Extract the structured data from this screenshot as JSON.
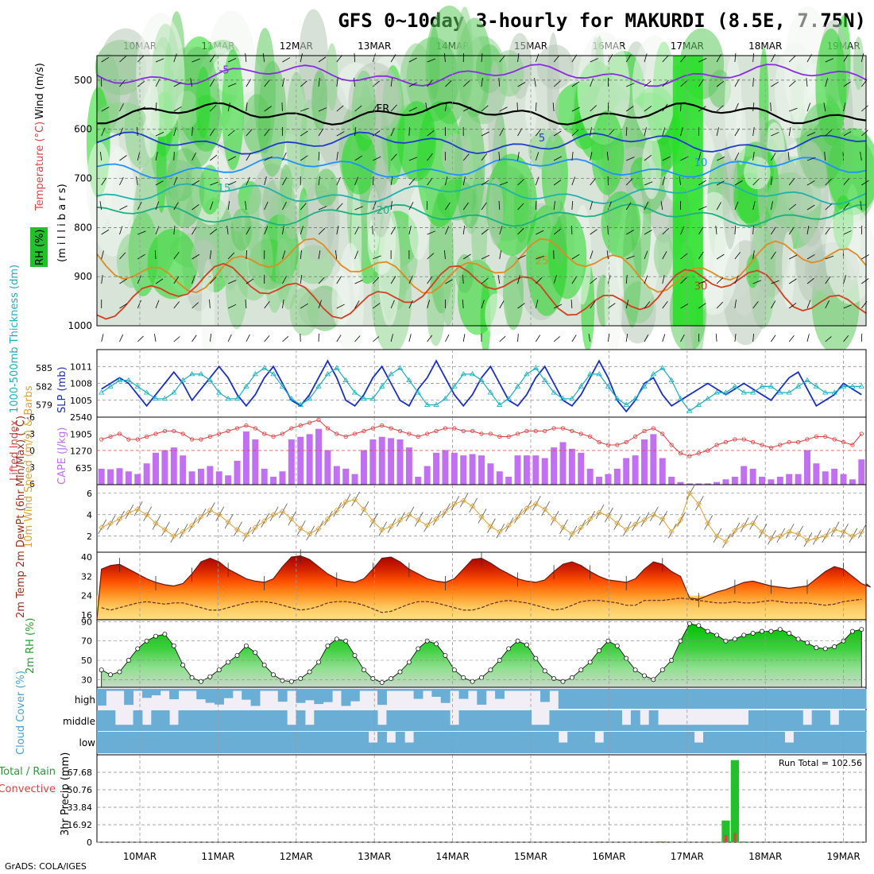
{
  "title": "GFS 0~10day 3-hourly for MAKURDI (8.5E, 7.75N)",
  "footer": "GrADS: COLA/IGES",
  "dates": [
    "10MAR",
    "11MAR",
    "12MAR",
    "13MAR",
    "14MAR",
    "15MAR",
    "16MAR",
    "17MAR",
    "18MAR",
    "19MAR"
  ],
  "chart_data": [
    {
      "type": "heatmap",
      "name": "upper-air cross-section",
      "ylabel_rh": "RH (%)",
      "ylabel_temp": "Temperature (°C)",
      "ylabel_wind": "Wind (m/s)",
      "ylabel_axis": "(m i l l i b a r s)",
      "yticks": [
        "500",
        "600",
        "700",
        "800",
        "900",
        "1000"
      ],
      "ylim": [
        1000,
        450
      ],
      "contour_labels": [
        "-5",
        "FR",
        "5",
        "10",
        "15",
        "20",
        "25"
      ],
      "isotherms": [
        {
          "label": "-5",
          "pressure": 490,
          "color": "#8a2be2"
        },
        {
          "label": "FR",
          "pressure": 568,
          "color": "#000000"
        },
        {
          "label": "5",
          "pressure": 628,
          "color": "#1e3ccc"
        },
        {
          "label": "10",
          "pressure": 678,
          "color": "#1e90ff"
        },
        {
          "label": "15",
          "pressure": 730,
          "color": "#20b2aa"
        },
        {
          "label": "20",
          "pressure": 775,
          "color": "#1ab080"
        },
        {
          "label": "25",
          "pressure": 878,
          "color": "#e08a20"
        },
        {
          "label": "30",
          "pressure": 930,
          "color": "#d04020"
        }
      ]
    },
    {
      "type": "line",
      "name": "thickness and SLP",
      "ylabel_left": "1000-500mb Thickness (dm)",
      "ylabel_right": "SLP (mb)",
      "yticks_left": [
        "585",
        "582",
        "579"
      ],
      "yticks_right": [
        "1011",
        "1008",
        "1005"
      ],
      "ylim_slp": [
        1002,
        1014
      ],
      "ylim_thk": [
        577,
        588
      ],
      "series": [
        {
          "name": "SLP",
          "color": "#1a30c8",
          "values": [
            1007,
            1008,
            1009,
            1008,
            1006,
            1004,
            1006,
            1008,
            1010,
            1008,
            1005,
            1007,
            1009,
            1011,
            1009,
            1006,
            1004,
            1006,
            1009,
            1011,
            1008,
            1005,
            1004,
            1006,
            1009,
            1012,
            1009,
            1005,
            1004,
            1006,
            1009,
            1011,
            1008,
            1005,
            1004,
            1007,
            1009,
            1012,
            1009,
            1006,
            1004,
            1006,
            1009,
            1011,
            1008,
            1005,
            1004,
            1006,
            1009,
            1011,
            1008,
            1005,
            1004,
            1006,
            1009,
            1012,
            1009,
            1005,
            1003,
            1005,
            1008,
            1009,
            1006,
            1004,
            1005,
            1006,
            1007,
            1008,
            1007,
            1006,
            1007,
            1008,
            1007,
            1006,
            1005,
            1007,
            1009,
            1010,
            1007,
            1004,
            1005,
            1006,
            1008,
            1007,
            1006
          ]
        },
        {
          "name": "Thickness",
          "color": "#18b0c0",
          "values": [
            581,
            582,
            583,
            583,
            582,
            581,
            580,
            580,
            581,
            583,
            584,
            584,
            583,
            581,
            580,
            580,
            582,
            584,
            585,
            584,
            582,
            580,
            579,
            580,
            582,
            584,
            585,
            583,
            581,
            580,
            580,
            582,
            584,
            585,
            583,
            581,
            579,
            579,
            580,
            582,
            584,
            584,
            583,
            581,
            579,
            580,
            582,
            584,
            585,
            583,
            581,
            580,
            580,
            582,
            584,
            584,
            582,
            580,
            579,
            580,
            582,
            584,
            585,
            583,
            580,
            578,
            579,
            580,
            581,
            581,
            582,
            581,
            581,
            582,
            582,
            581,
            581,
            582,
            583,
            582,
            581,
            581,
            582,
            582,
            582
          ]
        }
      ]
    },
    {
      "type": "bar",
      "name": "CAPE and lifted index",
      "ylabel_left": "Lifted Index",
      "ylabel_right": "CAPE (J/kg)",
      "yticks_left": [
        "-6",
        "-3",
        "0",
        "3",
        "6"
      ],
      "yticks_right": [
        "2540",
        "1905",
        "1270",
        "635"
      ],
      "ylim_cape": [
        0,
        2540
      ],
      "cape_values": [
        600,
        580,
        620,
        500,
        400,
        800,
        1200,
        1300,
        1400,
        1100,
        500,
        600,
        700,
        500,
        350,
        900,
        2000,
        1700,
        600,
        300,
        500,
        1700,
        1800,
        1900,
        2100,
        1300,
        700,
        600,
        400,
        1300,
        1700,
        1800,
        1750,
        1700,
        1400,
        300,
        700,
        1200,
        1300,
        1200,
        1100,
        1150,
        1100,
        800,
        500,
        300,
        1100,
        1100,
        1100,
        1000,
        1400,
        1600,
        1350,
        1200,
        600,
        300,
        400,
        600,
        1000,
        1100,
        1700,
        1900,
        1000,
        300,
        100,
        50,
        50,
        50,
        100,
        200,
        300,
        700,
        600,
        300,
        200,
        300,
        400,
        400,
        1300,
        800,
        500,
        600,
        400,
        200,
        950
      ],
      "li_values": [
        -2,
        -2.5,
        -3,
        -2,
        -2,
        -2.5,
        -3,
        -3.5,
        -3.5,
        -3,
        -2,
        -2,
        -2.5,
        -3,
        -3.5,
        -4,
        -4.5,
        -4,
        -3,
        -2.5,
        -3,
        -4,
        -4.5,
        -5,
        -5.5,
        -4,
        -3,
        -2.5,
        -3,
        -3.5,
        -4,
        -4.5,
        -4,
        -3.5,
        -3,
        -2.5,
        -3,
        -3.5,
        -4,
        -4,
        -3.5,
        -3.5,
        -3,
        -3,
        -2.5,
        -2.5,
        -3,
        -3.5,
        -3.5,
        -3.5,
        -4,
        -4,
        -3.5,
        -3,
        -2.5,
        -1.5,
        -1,
        -1,
        -1.5,
        -2.5,
        -3.5,
        -4,
        -3,
        -1,
        0.5,
        1,
        0.5,
        0,
        -1,
        -1.5,
        -2,
        -2,
        -1.5,
        -1,
        -0.5,
        -1,
        -1.5,
        -1.5,
        -2,
        -2.5,
        -2.5,
        -2,
        -1.5,
        -1,
        -3
      ]
    },
    {
      "type": "line",
      "name": "10m wind speed and barbs",
      "ylabel": "10m Wind Speed (m/s) & Barbs",
      "yticks": [
        "6",
        "4",
        "2"
      ],
      "ylim": [
        0.5,
        6.8
      ],
      "series": [
        {
          "name": "Wind speed",
          "color": "#e0a030",
          "values": [
            2.8,
            3.2,
            3.6,
            4.2,
            4.5,
            4.0,
            3.2,
            2.6,
            2.0,
            2.4,
            3.0,
            3.8,
            4.4,
            4.0,
            3.3,
            2.6,
            2.1,
            2.8,
            3.4,
            4.0,
            4.3,
            3.6,
            2.7,
            2.2,
            2.7,
            3.6,
            4.4,
            5.2,
            5.4,
            4.5,
            3.4,
            2.6,
            2.9,
            3.5,
            4.0,
            3.5,
            3.0,
            3.6,
            4.3,
            5.0,
            5.3,
            4.8,
            3.8,
            2.9,
            2.4,
            3.0,
            3.8,
            4.6,
            5.0,
            4.5,
            3.6,
            2.8,
            2.2,
            2.8,
            3.6,
            4.2,
            3.9,
            3.2,
            2.6,
            3.1,
            3.5,
            4.0,
            3.6,
            2.4,
            3.5,
            6.0,
            5.0,
            3.2,
            2.0,
            1.5,
            2.5,
            3.0,
            3.2,
            2.4,
            1.8,
            2.0,
            2.4,
            2.2,
            1.6,
            1.8,
            2.0,
            2.6,
            2.4,
            2.0,
            2.4
          ]
        }
      ]
    },
    {
      "type": "area",
      "name": "2m temperature and dewpoint",
      "ylabel": "2m Temp 2m DewPt (6hr Min/Max) (°C)",
      "yticks": [
        "40",
        "32",
        "24",
        "16"
      ],
      "ylim": [
        14,
        42
      ],
      "series": [
        {
          "name": "2m Temp",
          "values": [
            35,
            36.5,
            37,
            35,
            33,
            31,
            29.5,
            28.5,
            28,
            29,
            33,
            38,
            39.5,
            38,
            35,
            33,
            31,
            30,
            29.5,
            31,
            36,
            40,
            40.5,
            39,
            36,
            33,
            31,
            30,
            29.5,
            31,
            35,
            39.5,
            40,
            38,
            35,
            33,
            31,
            30,
            29.5,
            31,
            35,
            39,
            39.5,
            37.5,
            35,
            33,
            31,
            30,
            29.5,
            30.5,
            34,
            37,
            38,
            36.5,
            34,
            32,
            30.5,
            30,
            29.5,
            31,
            35,
            38,
            37,
            34,
            32,
            23,
            22.5,
            24,
            25.5,
            26.5,
            28,
            29.5,
            30,
            29,
            28,
            27.5,
            27,
            27.5,
            28,
            31,
            34,
            36,
            35,
            32,
            29,
            27.5
          ]
        },
        {
          "name": "2m DewPt",
          "values": [
            19,
            18,
            19,
            20,
            21,
            21.5,
            21,
            20.5,
            21,
            21,
            20,
            19,
            18,
            18,
            19,
            20,
            21,
            21.5,
            21.5,
            21,
            20,
            19,
            18,
            18.5,
            19.5,
            21,
            21.5,
            21.5,
            21,
            20,
            18.5,
            17,
            17.5,
            19,
            20.5,
            21.5,
            21.5,
            21,
            20,
            19,
            18,
            18,
            19,
            20.5,
            21.5,
            22,
            21.5,
            21,
            20,
            19,
            18,
            18.5,
            20,
            21.5,
            22,
            22,
            21.5,
            21,
            20,
            20,
            22,
            22,
            22,
            22.5,
            23,
            22.5,
            22,
            21.5,
            21,
            21,
            21.5,
            21,
            21,
            21.5,
            22,
            21.5,
            21,
            21,
            21,
            20.5,
            20,
            20.5,
            21.5,
            22,
            22.5
          ]
        }
      ]
    },
    {
      "type": "area",
      "name": "2m relative humidity",
      "ylabel": "2m RH (%)",
      "yticks": [
        "90",
        "70",
        "50",
        "30"
      ],
      "ylim": [
        22,
        92
      ],
      "values": [
        40,
        35,
        38,
        50,
        62,
        70,
        75,
        77,
        65,
        45,
        32,
        28,
        33,
        40,
        48,
        55,
        65,
        58,
        45,
        35,
        29,
        28,
        31,
        38,
        48,
        65,
        72,
        70,
        55,
        40,
        31,
        27,
        31,
        38,
        48,
        62,
        70,
        67,
        55,
        40,
        32,
        28,
        32,
        40,
        50,
        62,
        70,
        66,
        52,
        39,
        31,
        28,
        32,
        40,
        48,
        60,
        70,
        65,
        52,
        40,
        34,
        30,
        40,
        50,
        70,
        88,
        86,
        80,
        76,
        70,
        72,
        76,
        78,
        80,
        80,
        82,
        78,
        72,
        68,
        63,
        62,
        64,
        70,
        80,
        82
      ]
    },
    {
      "type": "table",
      "name": "cloud cover",
      "ylabel": "Cloud Cover (%)",
      "layers": [
        "high",
        "middle",
        "low"
      ]
    },
    {
      "type": "bar",
      "name": "3hr precipitation",
      "ylabel": "3hr Precip (mm)",
      "ylabel_total": "Total / Rain",
      "ylabel_conv": "Convective",
      "yticks": [
        "67.68",
        "50.76",
        "33.84",
        "16.92",
        "0"
      ],
      "ylim": [
        0,
        84.6
      ],
      "run_total": "Run Total = 102.56",
      "precip_bars": [
        {
          "x_step": 62,
          "total": 0.8,
          "convective": 0.3
        },
        {
          "x_step": 68,
          "total": 0.5,
          "convective": 0.2
        },
        {
          "x_step": 69,
          "total": 21.0,
          "convective": 7.0
        },
        {
          "x_step": 70,
          "total": 79.5,
          "convective": 9.0
        },
        {
          "x_step": 71,
          "total": 0.7,
          "convective": 0.3
        }
      ]
    }
  ]
}
